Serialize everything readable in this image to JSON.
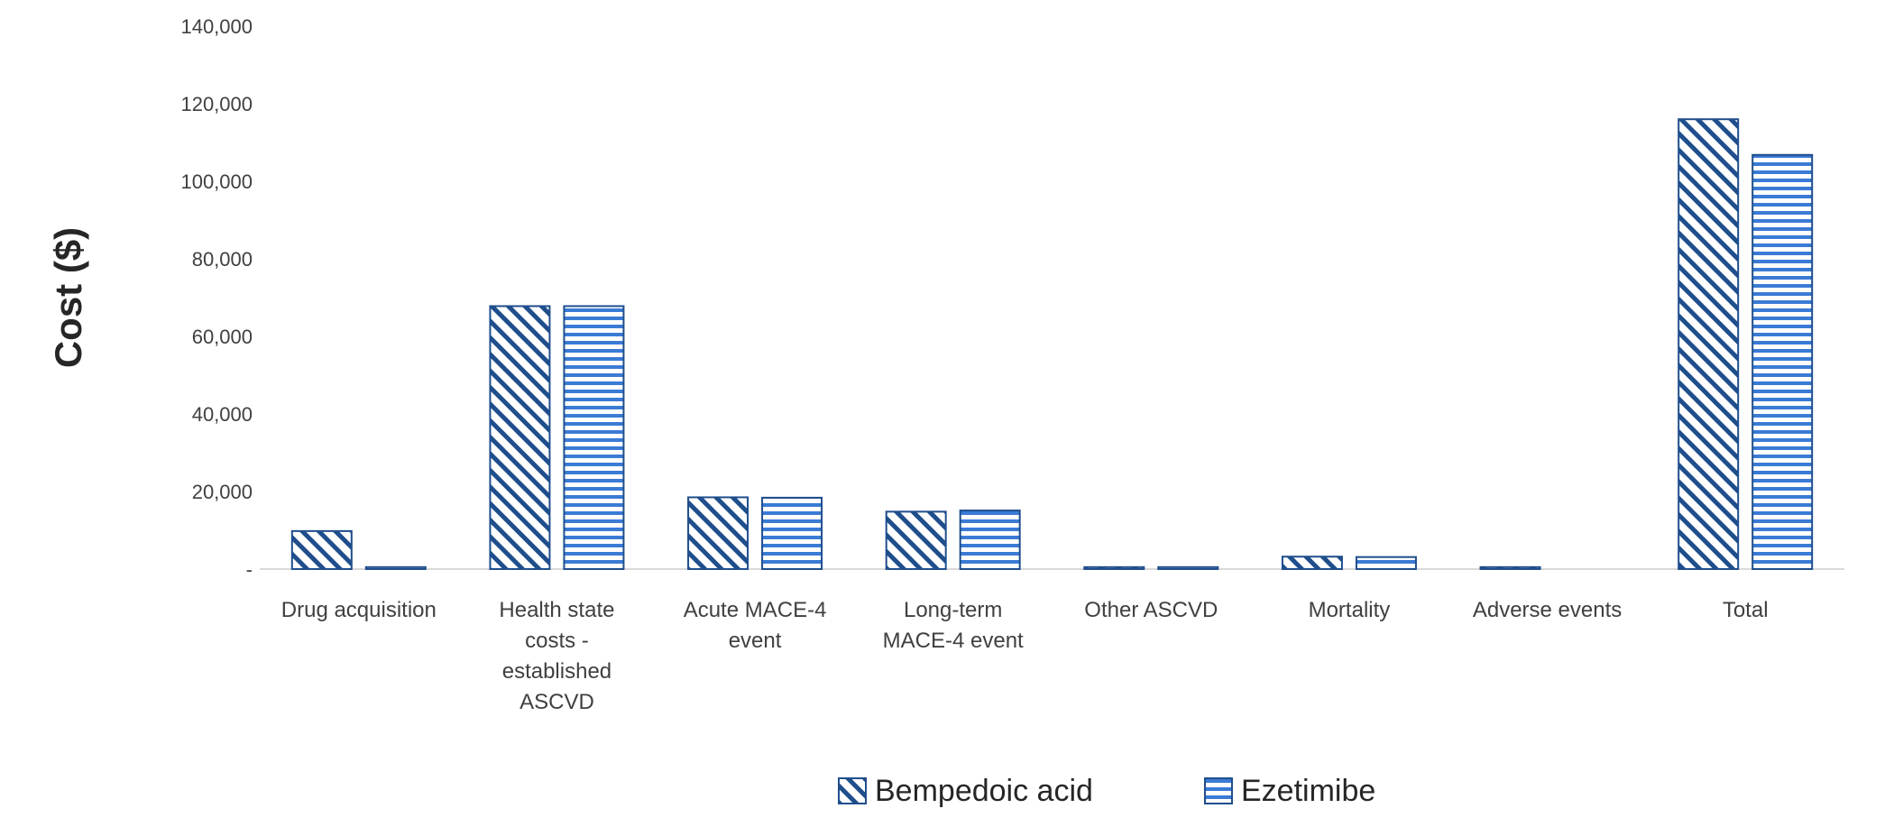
{
  "chart_data": {
    "type": "bar",
    "ylabel": "Cost ($)",
    "xlabel": "",
    "ylim": [
      0,
      140000
    ],
    "yticks": [
      {
        "value": 0,
        "label": "-"
      },
      {
        "value": 20000,
        "label": "20,000"
      },
      {
        "value": 40000,
        "label": "40,000"
      },
      {
        "value": 60000,
        "label": "60,000"
      },
      {
        "value": 80000,
        "label": "80,000"
      },
      {
        "value": 100000,
        "label": "100,000"
      },
      {
        "value": 120000,
        "label": "120,000"
      },
      {
        "value": 140000,
        "label": "140,000"
      }
    ],
    "categories": [
      [
        "Drug acquisition"
      ],
      [
        "Health state",
        "costs -",
        "established",
        "ASCVD"
      ],
      [
        "Acute MACE-4",
        "event"
      ],
      [
        "Long-term",
        "MACE-4 event"
      ],
      [
        "Other ASCVD"
      ],
      [
        "Mortality"
      ],
      [
        "Adverse events"
      ],
      [
        "Total"
      ]
    ],
    "series": [
      {
        "name": "Bempedoic acid",
        "pattern": "diagonal",
        "values": [
          9800,
          67800,
          18500,
          14800,
          500,
          3200,
          500,
          116000
        ]
      },
      {
        "name": "Ezetimibe",
        "pattern": "horizontal",
        "values": [
          500,
          67800,
          18400,
          15100,
          500,
          3100,
          0,
          106800
        ]
      }
    ],
    "grid": false,
    "legend_position": "bottom-center",
    "colors": {
      "bar_stroke": "#1F4E8C",
      "diagonal_fill": "#1F4E8C",
      "horizontal_fill": "#3A7BD5",
      "axis_line": "#D9D9D9",
      "tick_text": "#404040",
      "ylabel_text": "#262626"
    }
  }
}
